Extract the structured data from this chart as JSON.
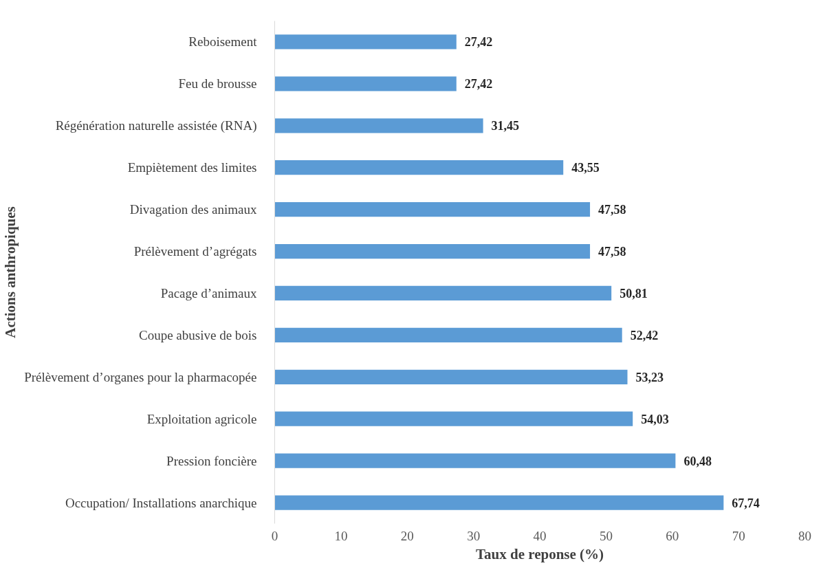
{
  "chart_data": {
    "type": "bar",
    "orientation": "horizontal",
    "xlabel": "Taux de reponse (%)",
    "ylabel": "Actions anthropiques",
    "categories": [
      "Reboisement",
      "Feu de brousse",
      "Régénération naturelle assistée (RNA)",
      "Empiètement des limites",
      "Divagation des animaux",
      "Prélèvement d’agrégats",
      "Pacage d’animaux",
      "Coupe abusive de bois",
      "Prélèvement d’organes pour la pharmacopée",
      "Exploitation agricole",
      "Pression foncière",
      "Occupation/ Installations anarchique"
    ],
    "values": [
      27.42,
      27.42,
      31.45,
      43.55,
      47.58,
      47.58,
      50.81,
      52.42,
      53.23,
      54.03,
      60.48,
      67.74
    ],
    "value_labels": [
      "27,42",
      "27,42",
      "31,45",
      "43,55",
      "47,58",
      "47,58",
      "50,81",
      "52,42",
      "53,23",
      "54,03",
      "60,48",
      "67,74"
    ],
    "color": "#5b9bd5",
    "xlim": [
      0,
      80
    ],
    "xticks": [
      0,
      10,
      20,
      30,
      40,
      50,
      60,
      70,
      80
    ],
    "grid": false
  }
}
